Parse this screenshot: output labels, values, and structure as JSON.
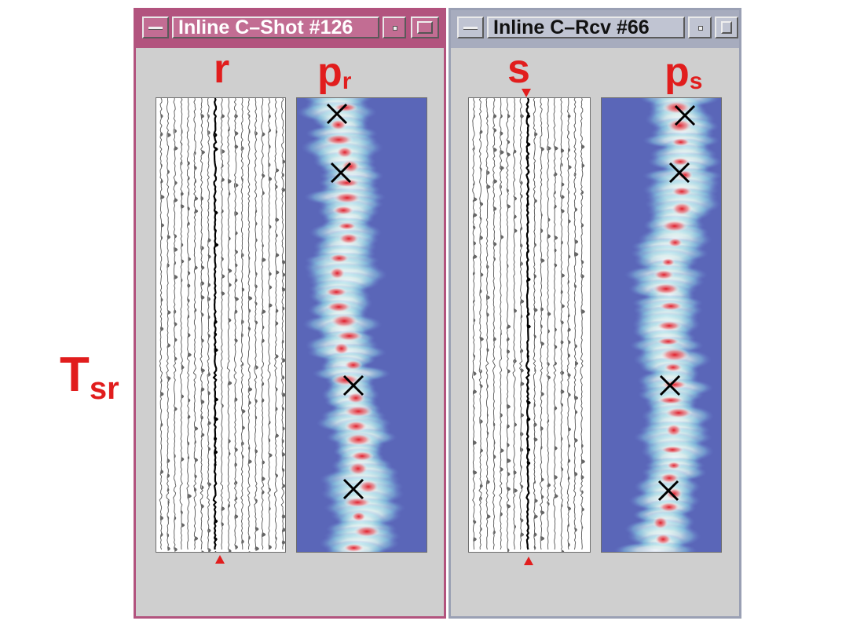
{
  "windows": [
    {
      "title": "Inline C–Shot #126",
      "trace_label": "r",
      "spectrum_label": "p",
      "spectrum_sub": "r"
    },
    {
      "title": "Inline C–Rcv #66",
      "trace_label": "s",
      "spectrum_label": "p",
      "spectrum_sub": "s"
    }
  ],
  "axis_label": {
    "main": "T",
    "sub": "sr"
  },
  "icons": {
    "menu": "window-menu-icon",
    "minimize": "minimize-icon",
    "maximize": "maximize-icon",
    "pick": "pick-x-icon"
  },
  "colors": {
    "label_red": "#e11d1d",
    "shot_frame": "#b2537e",
    "rcv_frame": "#9aa0b4",
    "spectrum_bg": "#5a66b8",
    "spectrum_hot": "#e01f2b"
  }
}
